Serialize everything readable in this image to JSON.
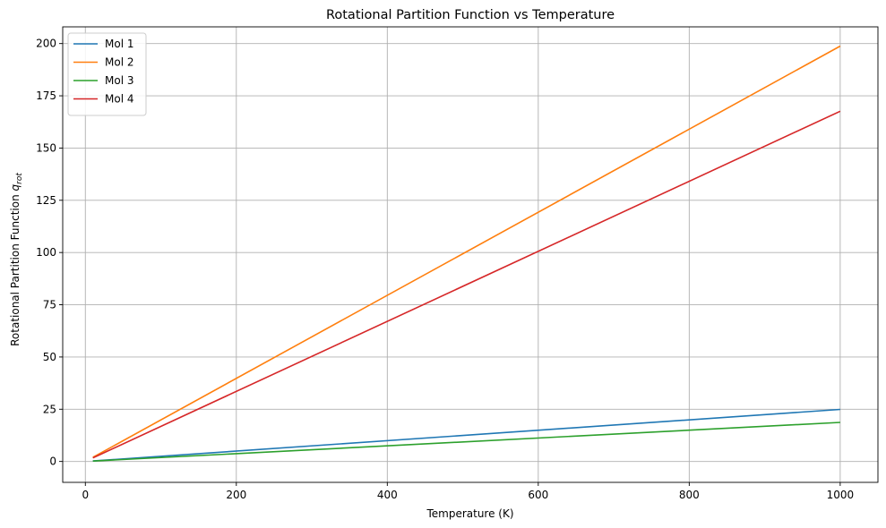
{
  "chart_data": {
    "type": "line",
    "title": "Rotational Partition Function vs Temperature",
    "xlabel": "Temperature (K)",
    "ylabel_main": "Rotational Partition Function ",
    "ylabel_symbol": "q",
    "ylabel_subscript": "rot",
    "xlim": [
      -30,
      1050
    ],
    "ylim": [
      -10,
      208
    ],
    "xticks": [
      0,
      200,
      400,
      600,
      800,
      1000
    ],
    "yticks": [
      0,
      25,
      50,
      75,
      100,
      125,
      150,
      175,
      200
    ],
    "grid": true,
    "legend_position": "top-left",
    "series": [
      {
        "name": "Mol 1",
        "color": "#1f77b4",
        "x": [
          10,
          1000
        ],
        "y": [
          0.25,
          24.9
        ]
      },
      {
        "name": "Mol 2",
        "color": "#ff7f0e",
        "x": [
          10,
          1000
        ],
        "y": [
          2.0,
          198.8
        ]
      },
      {
        "name": "Mol 3",
        "color": "#2ca02c",
        "x": [
          10,
          1000
        ],
        "y": [
          0.19,
          18.7
        ]
      },
      {
        "name": "Mol 4",
        "color": "#d62728",
        "x": [
          10,
          1000
        ],
        "y": [
          1.7,
          167.6
        ]
      }
    ]
  }
}
